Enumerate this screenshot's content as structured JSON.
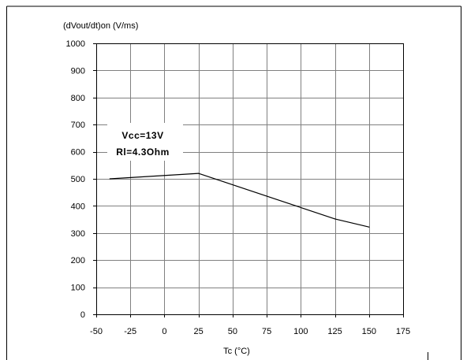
{
  "chart_data": {
    "type": "line",
    "ylabel": "(dVout/dt)on (V/ms)",
    "xlabel": "Tc (°C)",
    "xlim": [
      -50,
      175
    ],
    "ylim": [
      0,
      1000
    ],
    "x_ticks": [
      -50,
      -25,
      0,
      25,
      50,
      75,
      100,
      125,
      150,
      175
    ],
    "y_ticks": [
      0,
      100,
      200,
      300,
      400,
      500,
      600,
      700,
      800,
      900,
      1000
    ],
    "grid": true,
    "series": [
      {
        "x": [
          -40,
          25,
          125,
          150
        ],
        "y": [
          500,
          520,
          352,
          322
        ]
      }
    ],
    "annotation": [
      "Vcc=13V",
      "Rl=4.3Ohm"
    ]
  },
  "colors": {
    "line": "#000000",
    "grid": "#808080",
    "frame": "#000000"
  }
}
